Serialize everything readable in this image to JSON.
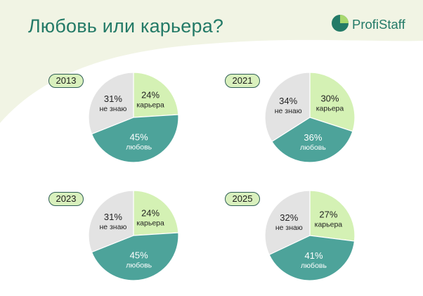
{
  "header": {
    "title": "Любовь или карьера?",
    "brand": "ProfiStaff"
  },
  "colors": {
    "background": "#f1f4e4",
    "love": "#4da39a",
    "career": "#d4f1b4",
    "dont_know": "#e3e3e3",
    "accent": "#237a67"
  },
  "chart_data": [
    {
      "type": "pie",
      "title": "2013",
      "slices": [
        {
          "key": "career",
          "value": 24,
          "pct_label": "24%",
          "label": "карьера",
          "color": "#d4f1b4"
        },
        {
          "key": "love",
          "value": 45,
          "pct_label": "45%",
          "label": "любовь",
          "color": "#4da39a"
        },
        {
          "key": "dont_know",
          "value": 31,
          "pct_label": "31%",
          "label": "не знаю",
          "color": "#e3e3e3"
        }
      ]
    },
    {
      "type": "pie",
      "title": "2021",
      "slices": [
        {
          "key": "career",
          "value": 30,
          "pct_label": "30%",
          "label": "карьера",
          "color": "#d4f1b4"
        },
        {
          "key": "love",
          "value": 36,
          "pct_label": "36%",
          "label": "любовь",
          "color": "#4da39a"
        },
        {
          "key": "dont_know",
          "value": 34,
          "pct_label": "34%",
          "label": "не знаю",
          "color": "#e3e3e3"
        }
      ]
    },
    {
      "type": "pie",
      "title": "2023",
      "slices": [
        {
          "key": "career",
          "value": 24,
          "pct_label": "24%",
          "label": "карьера",
          "color": "#d4f1b4"
        },
        {
          "key": "love",
          "value": 45,
          "pct_label": "45%",
          "label": "любовь",
          "color": "#4da39a"
        },
        {
          "key": "dont_know",
          "value": 31,
          "pct_label": "31%",
          "label": "не знаю",
          "color": "#e3e3e3"
        }
      ]
    },
    {
      "type": "pie",
      "title": "2025",
      "slices": [
        {
          "key": "career",
          "value": 27,
          "pct_label": "27%",
          "label": "карьера",
          "color": "#d4f1b4"
        },
        {
          "key": "love",
          "value": 41,
          "pct_label": "41%",
          "label": "любовь",
          "color": "#4da39a"
        },
        {
          "key": "dont_know",
          "value": 32,
          "pct_label": "32%",
          "label": "не знаю",
          "color": "#e3e3e3"
        }
      ]
    }
  ]
}
